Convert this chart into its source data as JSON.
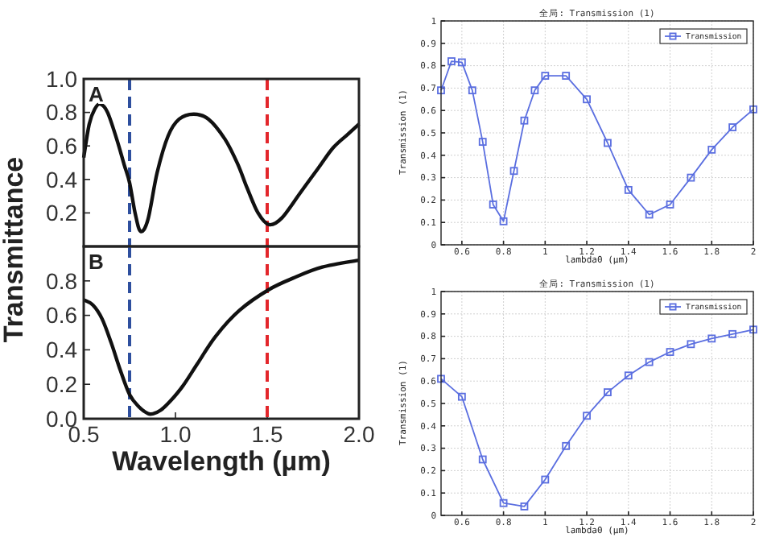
{
  "chart_data": [
    {
      "type": "line",
      "x": [
        0.5,
        0.53,
        0.56,
        0.59,
        0.63,
        0.68,
        0.72,
        0.75,
        0.78,
        0.81,
        0.85,
        0.9,
        0.96,
        1.02,
        1.1,
        1.18,
        1.27,
        1.34,
        1.39,
        1.45,
        1.51,
        1.58,
        1.68,
        1.78,
        1.86,
        1.94,
        2.0
      ],
      "series": [
        {
          "color": "#111111",
          "values": [
            0.53,
            0.73,
            0.82,
            0.85,
            0.8,
            0.64,
            0.49,
            0.38,
            0.2,
            0.09,
            0.16,
            0.44,
            0.66,
            0.76,
            0.79,
            0.76,
            0.64,
            0.49,
            0.35,
            0.2,
            0.13,
            0.17,
            0.32,
            0.47,
            0.59,
            0.67,
            0.73
          ]
        }
      ],
      "xlim": [
        0.5,
        2.0
      ],
      "ylim": [
        0,
        1.0
      ],
      "yticks": [
        0.2,
        0.4,
        0.6,
        0.8,
        {
          "value": 1.0,
          "label": "1.0"
        }
      ],
      "tick_labels": "y",
      "annotations": [
        "A"
      ],
      "ref_lines": [
        {
          "axis": "x",
          "value": 0.75,
          "color": "#2e4f9e",
          "line_style": "dashed"
        },
        {
          "axis": "x",
          "value": 1.5,
          "color": "#e3262b",
          "line_style": "dashed"
        }
      ],
      "line_style": "solid"
    },
    {
      "type": "line",
      "x": [
        0.5,
        0.55,
        0.6,
        0.65,
        0.7,
        0.75,
        0.8,
        0.85,
        0.88,
        0.92,
        0.97,
        1.04,
        1.12,
        1.22,
        1.35,
        1.51,
        1.65,
        1.8,
        2.0
      ],
      "series": [
        {
          "color": "#111111",
          "values": [
            0.69,
            0.66,
            0.58,
            0.44,
            0.28,
            0.14,
            0.07,
            0.03,
            0.03,
            0.05,
            0.1,
            0.19,
            0.32,
            0.48,
            0.63,
            0.75,
            0.82,
            0.88,
            0.92
          ]
        }
      ],
      "xlim": [
        0.5,
        2.0
      ],
      "ylim": [
        0,
        1.0
      ],
      "xticks": [
        0.5,
        {
          "value": 1.0,
          "label": "1.0"
        },
        1.5,
        {
          "value": 2.0,
          "label": "2.0"
        }
      ],
      "yticks": [
        {
          "value": 0,
          "label": "0.0"
        },
        0.2,
        0.4,
        0.6,
        0.8
      ],
      "xlabel": "Wavelength (µm)",
      "ylabel": "Transmittance",
      "annotations": [
        "B"
      ],
      "ref_lines": [
        {
          "axis": "x",
          "value": 0.75,
          "color": "#2e4f9e",
          "line_style": "dashed"
        },
        {
          "axis": "x",
          "value": 1.5,
          "color": "#e3262b",
          "line_style": "dashed"
        }
      ],
      "line_style": "solid"
    },
    {
      "type": "line",
      "title": "全局: Transmission (1)",
      "xlabel": "lambda0 (µm)",
      "ylabel": "Transmission (1)",
      "x": [
        0.5,
        0.55,
        0.6,
        0.65,
        0.7,
        0.75,
        0.8,
        0.85,
        0.9,
        0.95,
        1.0,
        1.1,
        1.2,
        1.3,
        1.4,
        1.5,
        1.6,
        1.7,
        1.8,
        1.9,
        2.0
      ],
      "series": [
        {
          "name": "Transmission",
          "color": "#5a6ee0",
          "values": [
            0.69,
            0.82,
            0.815,
            0.69,
            0.46,
            0.18,
            0.105,
            0.33,
            0.555,
            0.69,
            0.755,
            0.755,
            0.65,
            0.455,
            0.245,
            0.135,
            0.18,
            0.3,
            0.425,
            0.525,
            0.605
          ]
        }
      ],
      "xlim": [
        0.5,
        2.0
      ],
      "ylim": [
        0,
        1
      ],
      "xticks": [
        0.6,
        0.8,
        1,
        1.2,
        1.4,
        1.6,
        1.8,
        2
      ],
      "yticks": [
        0,
        0.1,
        0.2,
        0.3,
        0.4,
        0.5,
        0.6,
        0.7,
        0.8,
        0.9,
        1
      ],
      "grid": true,
      "legend": "top right",
      "marker": "square",
      "line_style": "solid"
    },
    {
      "type": "line",
      "title": "全局: Transmission (1)",
      "xlabel": "lambda0 (µm)",
      "ylabel": "Transmission (1)",
      "x": [
        0.5,
        0.6,
        0.7,
        0.8,
        0.9,
        1.0,
        1.1,
        1.2,
        1.3,
        1.4,
        1.5,
        1.6,
        1.7,
        1.8,
        1.9,
        2.0
      ],
      "series": [
        {
          "name": "Transmission",
          "color": "#5a6ee0",
          "values": [
            0.61,
            0.53,
            0.25,
            0.055,
            0.04,
            0.16,
            0.31,
            0.445,
            0.55,
            0.625,
            0.685,
            0.73,
            0.765,
            0.79,
            0.81,
            0.83
          ]
        }
      ],
      "xlim": [
        0.5,
        2.0
      ],
      "ylim": [
        0,
        1
      ],
      "xticks": [
        0.6,
        0.8,
        1,
        1.2,
        1.4,
        1.6,
        1.8,
        2
      ],
      "yticks": [
        0,
        0.1,
        0.2,
        0.3,
        0.4,
        0.5,
        0.6,
        0.7,
        0.8,
        0.9,
        1
      ],
      "grid": true,
      "legend": "top right",
      "marker": "square",
      "line_style": "solid"
    }
  ]
}
